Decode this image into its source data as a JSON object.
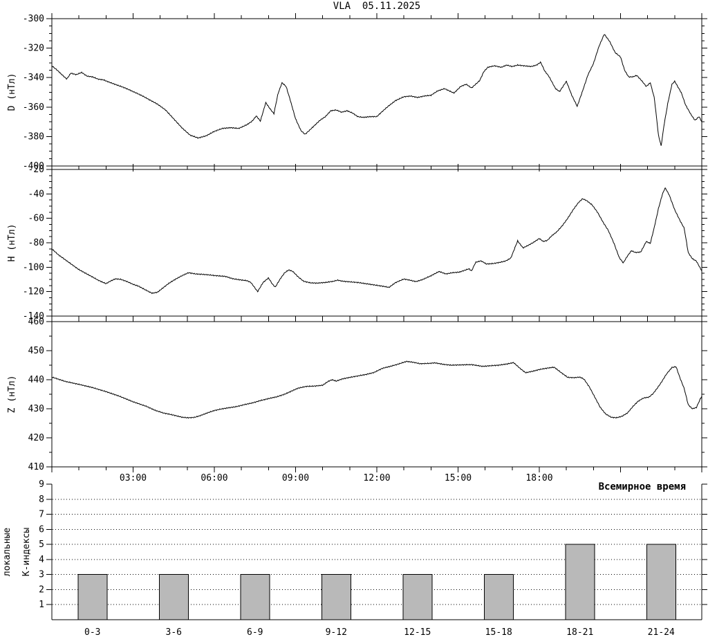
{
  "title": "VLA  05.11.2025",
  "x_axis": {
    "label": "Всемирное время",
    "range_hours": [
      0,
      24
    ],
    "ticks": [
      {
        "hours": 3,
        "label": "03:00"
      },
      {
        "hours": 6,
        "label": "06:00"
      },
      {
        "hours": 9,
        "label": "09:00"
      },
      {
        "hours": 12,
        "label": "12:00"
      },
      {
        "hours": 15,
        "label": "15:00"
      },
      {
        "hours": 18,
        "label": "18:00"
      }
    ]
  },
  "colors": {
    "line": "#000000",
    "bar_fill": "#b9b9b9",
    "background": "#ffffff",
    "text": "#000000"
  },
  "chart_data": [
    {
      "type": "line",
      "name": "D",
      "ylabel": "D (нТл)",
      "ylim": [
        -400,
        -300
      ],
      "yticks": [
        -300,
        -320,
        -340,
        -360,
        -380,
        -400
      ],
      "ytick_minor": 5,
      "points": [
        [
          0,
          -332
        ],
        [
          0.2,
          -335
        ],
        [
          0.4,
          -338.5
        ],
        [
          0.55,
          -341
        ],
        [
          0.7,
          -337
        ],
        [
          0.9,
          -338
        ],
        [
          1.1,
          -336.5
        ],
        [
          1.3,
          -339
        ],
        [
          1.5,
          -339.5
        ],
        [
          1.7,
          -341
        ],
        [
          1.9,
          -341.5
        ],
        [
          2.1,
          -343
        ],
        [
          2.4,
          -345
        ],
        [
          2.7,
          -347
        ],
        [
          3,
          -349.5
        ],
        [
          3.3,
          -352
        ],
        [
          3.6,
          -355
        ],
        [
          3.9,
          -358
        ],
        [
          4.2,
          -362
        ],
        [
          4.5,
          -368
        ],
        [
          4.8,
          -374
        ],
        [
          5.1,
          -379
        ],
        [
          5.4,
          -381
        ],
        [
          5.7,
          -379.5
        ],
        [
          6,
          -376.5
        ],
        [
          6.3,
          -374.5
        ],
        [
          6.6,
          -374
        ],
        [
          6.9,
          -374.5
        ],
        [
          7.2,
          -372
        ],
        [
          7.4,
          -369.5
        ],
        [
          7.55,
          -366
        ],
        [
          7.7,
          -369.5
        ],
        [
          7.9,
          -357
        ],
        [
          8.05,
          -361
        ],
        [
          8.2,
          -364.5
        ],
        [
          8.35,
          -351
        ],
        [
          8.5,
          -343.5
        ],
        [
          8.65,
          -346
        ],
        [
          8.8,
          -355
        ],
        [
          9,
          -368
        ],
        [
          9.2,
          -376
        ],
        [
          9.35,
          -378.5
        ],
        [
          9.5,
          -376
        ],
        [
          9.7,
          -372.5
        ],
        [
          9.9,
          -369
        ],
        [
          10.1,
          -366.5
        ],
        [
          10.3,
          -362.5
        ],
        [
          10.5,
          -362
        ],
        [
          10.7,
          -363.5
        ],
        [
          10.9,
          -362.5
        ],
        [
          11.1,
          -364
        ],
        [
          11.3,
          -366.5
        ],
        [
          11.5,
          -367
        ],
        [
          11.75,
          -366.5
        ],
        [
          12,
          -366.5
        ],
        [
          12.2,
          -363
        ],
        [
          12.45,
          -359
        ],
        [
          12.7,
          -355.5
        ],
        [
          13,
          -353
        ],
        [
          13.25,
          -352.5
        ],
        [
          13.5,
          -353.5
        ],
        [
          13.75,
          -352.5
        ],
        [
          14,
          -352
        ],
        [
          14.25,
          -349
        ],
        [
          14.5,
          -347.5
        ],
        [
          14.85,
          -350.5
        ],
        [
          15.1,
          -346
        ],
        [
          15.3,
          -344.5
        ],
        [
          15.5,
          -347
        ],
        [
          15.8,
          -342
        ],
        [
          15.95,
          -336
        ],
        [
          16.1,
          -333
        ],
        [
          16.35,
          -332
        ],
        [
          16.6,
          -333
        ],
        [
          16.8,
          -331.5
        ],
        [
          17,
          -332.5
        ],
        [
          17.2,
          -331.5
        ],
        [
          17.45,
          -332
        ],
        [
          17.7,
          -332.5
        ],
        [
          17.9,
          -331.5
        ],
        [
          18.05,
          -329.5
        ],
        [
          18.2,
          -335.5
        ],
        [
          18.35,
          -339
        ],
        [
          18.6,
          -347.5
        ],
        [
          18.75,
          -349.5
        ],
        [
          19,
          -342.5
        ],
        [
          19.2,
          -352
        ],
        [
          19.4,
          -359.5
        ],
        [
          19.6,
          -349
        ],
        [
          19.8,
          -338
        ],
        [
          20,
          -330.5
        ],
        [
          20.2,
          -319
        ],
        [
          20.4,
          -310.5
        ],
        [
          20.6,
          -315.5
        ],
        [
          20.8,
          -323
        ],
        [
          21,
          -326
        ],
        [
          21.15,
          -335
        ],
        [
          21.3,
          -339.5
        ],
        [
          21.45,
          -339.5
        ],
        [
          21.6,
          -338.5
        ],
        [
          21.8,
          -342.5
        ],
        [
          21.95,
          -346
        ],
        [
          22.1,
          -343.5
        ],
        [
          22.25,
          -354
        ],
        [
          22.4,
          -379
        ],
        [
          22.5,
          -386.5
        ],
        [
          22.6,
          -373
        ],
        [
          22.75,
          -357
        ],
        [
          22.9,
          -344.5
        ],
        [
          23,
          -342.5
        ],
        [
          23.25,
          -350.5
        ],
        [
          23.4,
          -358.5
        ],
        [
          23.6,
          -365
        ],
        [
          23.75,
          -369
        ],
        [
          23.9,
          -366.5
        ],
        [
          24,
          -370
        ]
      ]
    },
    {
      "type": "line",
      "name": "H",
      "ylabel": "H (нТл)",
      "ylim": [
        -140,
        -20
      ],
      "yticks": [
        -20,
        -40,
        -60,
        -80,
        -100,
        -120,
        -140
      ],
      "ytick_minor": 5,
      "points": [
        [
          0,
          -85
        ],
        [
          0.25,
          -90
        ],
        [
          0.5,
          -94
        ],
        [
          0.75,
          -98
        ],
        [
          1,
          -102
        ],
        [
          1.25,
          -105
        ],
        [
          1.5,
          -108
        ],
        [
          1.7,
          -110.5
        ],
        [
          1.85,
          -112
        ],
        [
          2,
          -113.5
        ],
        [
          2.15,
          -111.5
        ],
        [
          2.35,
          -109.5
        ],
        [
          2.55,
          -110
        ],
        [
          2.75,
          -111.5
        ],
        [
          3,
          -114
        ],
        [
          3.2,
          -115.5
        ],
        [
          3.45,
          -118.5
        ],
        [
          3.7,
          -121.3
        ],
        [
          3.9,
          -120.5
        ],
        [
          4.1,
          -117
        ],
        [
          4.3,
          -113.5
        ],
        [
          4.55,
          -110
        ],
        [
          4.8,
          -107
        ],
        [
          5.05,
          -104.5
        ],
        [
          5.3,
          -105.5
        ],
        [
          5.55,
          -105.8
        ],
        [
          5.8,
          -106.3
        ],
        [
          6.1,
          -107
        ],
        [
          6.4,
          -107.5
        ],
        [
          6.7,
          -109.5
        ],
        [
          7,
          -110.5
        ],
        [
          7.2,
          -111
        ],
        [
          7.35,
          -112.5
        ],
        [
          7.6,
          -120
        ],
        [
          7.8,
          -112.5
        ],
        [
          8,
          -108.8
        ],
        [
          8.15,
          -114
        ],
        [
          8.25,
          -116.3
        ],
        [
          8.45,
          -109
        ],
        [
          8.6,
          -104.5
        ],
        [
          8.75,
          -102.2
        ],
        [
          8.9,
          -103.5
        ],
        [
          9.1,
          -108
        ],
        [
          9.3,
          -111.5
        ],
        [
          9.55,
          -112.8
        ],
        [
          9.8,
          -113
        ],
        [
          10.1,
          -112.5
        ],
        [
          10.4,
          -111.5
        ],
        [
          10.55,
          -110.6
        ],
        [
          10.75,
          -111.5
        ],
        [
          11,
          -112
        ],
        [
          11.3,
          -112.5
        ],
        [
          11.6,
          -113.5
        ],
        [
          11.9,
          -114.5
        ],
        [
          12.2,
          -115.5
        ],
        [
          12.45,
          -116.5
        ],
        [
          12.7,
          -112.5
        ],
        [
          13,
          -109.7
        ],
        [
          13.2,
          -110.5
        ],
        [
          13.45,
          -111.8
        ],
        [
          13.7,
          -110
        ],
        [
          14,
          -107
        ],
        [
          14.3,
          -103.5
        ],
        [
          14.55,
          -105.5
        ],
        [
          14.8,
          -104.5
        ],
        [
          15.05,
          -104
        ],
        [
          15.25,
          -102.5
        ],
        [
          15.4,
          -101.3
        ],
        [
          15.5,
          -103
        ],
        [
          15.65,
          -96
        ],
        [
          15.85,
          -94.8
        ],
        [
          16.05,
          -97.4
        ],
        [
          16.3,
          -97
        ],
        [
          16.55,
          -96
        ],
        [
          16.75,
          -95
        ],
        [
          16.95,
          -92.5
        ],
        [
          17.1,
          -84
        ],
        [
          17.2,
          -78.5
        ],
        [
          17.4,
          -84.2
        ],
        [
          17.6,
          -82
        ],
        [
          17.8,
          -79.5
        ],
        [
          18,
          -76.5
        ],
        [
          18.15,
          -79
        ],
        [
          18.3,
          -78
        ],
        [
          18.45,
          -74.5
        ],
        [
          18.65,
          -71
        ],
        [
          18.85,
          -66
        ],
        [
          19.05,
          -60
        ],
        [
          19.25,
          -53
        ],
        [
          19.45,
          -47
        ],
        [
          19.6,
          -44
        ],
        [
          19.75,
          -45.5
        ],
        [
          19.95,
          -49
        ],
        [
          20.15,
          -55
        ],
        [
          20.35,
          -63
        ],
        [
          20.55,
          -70
        ],
        [
          20.75,
          -80
        ],
        [
          20.95,
          -92
        ],
        [
          21.1,
          -96.5
        ],
        [
          21.25,
          -91
        ],
        [
          21.4,
          -86.5
        ],
        [
          21.55,
          -88
        ],
        [
          21.75,
          -87.5
        ],
        [
          21.95,
          -79
        ],
        [
          22.1,
          -80.5
        ],
        [
          22.25,
          -67
        ],
        [
          22.4,
          -52
        ],
        [
          22.55,
          -40
        ],
        [
          22.65,
          -35
        ],
        [
          22.8,
          -41
        ],
        [
          23,
          -53
        ],
        [
          23.2,
          -62
        ],
        [
          23.35,
          -68
        ],
        [
          23.5,
          -88
        ],
        [
          23.65,
          -93
        ],
        [
          23.8,
          -95
        ],
        [
          23.9,
          -99
        ],
        [
          24,
          -103
        ]
      ]
    },
    {
      "type": "line",
      "name": "Z",
      "ylabel": "Z (нТл)",
      "ylim": [
        410,
        460
      ],
      "yticks": [
        460,
        450,
        440,
        430,
        420,
        410
      ],
      "ytick_minor": 5,
      "points": [
        [
          0,
          440.9
        ],
        [
          0.5,
          439.4
        ],
        [
          1,
          438.4
        ],
        [
          1.5,
          437.3
        ],
        [
          2,
          435.9
        ],
        [
          2.5,
          434.3
        ],
        [
          3,
          432.4
        ],
        [
          3.5,
          430.8
        ],
        [
          3.8,
          429.5
        ],
        [
          4.1,
          428.6
        ],
        [
          4.5,
          427.8
        ],
        [
          4.8,
          427.1
        ],
        [
          5,
          426.9
        ],
        [
          5.25,
          427
        ],
        [
          5.5,
          427.7
        ],
        [
          5.75,
          428.6
        ],
        [
          6,
          429.4
        ],
        [
          6.25,
          429.9
        ],
        [
          6.5,
          430.3
        ],
        [
          6.8,
          430.7
        ],
        [
          7.1,
          431.4
        ],
        [
          7.4,
          432
        ],
        [
          7.7,
          432.8
        ],
        [
          8,
          433.5
        ],
        [
          8.3,
          434.1
        ],
        [
          8.6,
          435
        ],
        [
          8.9,
          436.3
        ],
        [
          9.1,
          437.1
        ],
        [
          9.4,
          437.7
        ],
        [
          9.7,
          437.8
        ],
        [
          10,
          438.1
        ],
        [
          10.2,
          439.4
        ],
        [
          10.35,
          440
        ],
        [
          10.5,
          439.5
        ],
        [
          10.7,
          440.2
        ],
        [
          11,
          440.8
        ],
        [
          11.3,
          441.3
        ],
        [
          11.6,
          441.8
        ],
        [
          11.9,
          442.5
        ],
        [
          12.2,
          443.9
        ],
        [
          12.5,
          444.6
        ],
        [
          12.8,
          445.4
        ],
        [
          13.1,
          446.3
        ],
        [
          13.35,
          446
        ],
        [
          13.6,
          445.5
        ],
        [
          13.9,
          445.6
        ],
        [
          14.15,
          445.8
        ],
        [
          14.45,
          445.3
        ],
        [
          14.75,
          445
        ],
        [
          15.1,
          445.1
        ],
        [
          15.5,
          445.2
        ],
        [
          15.9,
          444.6
        ],
        [
          16.2,
          444.8
        ],
        [
          16.5,
          445
        ],
        [
          16.8,
          445.4
        ],
        [
          17.05,
          445.9
        ],
        [
          17.3,
          443.8
        ],
        [
          17.5,
          442.4
        ],
        [
          17.75,
          442.9
        ],
        [
          18,
          443.5
        ],
        [
          18.3,
          444
        ],
        [
          18.55,
          444.3
        ],
        [
          18.8,
          442.5
        ],
        [
          19.05,
          440.8
        ],
        [
          19.3,
          440.7
        ],
        [
          19.5,
          440.9
        ],
        [
          19.65,
          440.2
        ],
        [
          19.85,
          437.5
        ],
        [
          20.05,
          434
        ],
        [
          20.25,
          430.5
        ],
        [
          20.45,
          428.2
        ],
        [
          20.65,
          427.1
        ],
        [
          20.85,
          426.9
        ],
        [
          21.05,
          427.4
        ],
        [
          21.25,
          428.5
        ],
        [
          21.45,
          430.7
        ],
        [
          21.65,
          432.6
        ],
        [
          21.85,
          433.7
        ],
        [
          22.05,
          434
        ],
        [
          22.2,
          435.2
        ],
        [
          22.35,
          437
        ],
        [
          22.5,
          439
        ],
        [
          22.7,
          442
        ],
        [
          22.9,
          444.2
        ],
        [
          23.05,
          444.5
        ],
        [
          23.2,
          440.5
        ],
        [
          23.35,
          437
        ],
        [
          23.5,
          431.4
        ],
        [
          23.65,
          430
        ],
        [
          23.8,
          430.4
        ],
        [
          23.95,
          433.5
        ],
        [
          24,
          434.3
        ]
      ]
    },
    {
      "type": "bar",
      "name": "K",
      "ylabel_lines": [
        "локальные",
        "К-индексы"
      ],
      "ylim": [
        0,
        9
      ],
      "yticks": [
        1,
        2,
        3,
        4,
        5,
        6,
        7,
        8,
        9
      ],
      "grid_levels": [
        1,
        2,
        3,
        4,
        5,
        6,
        7,
        8
      ],
      "categories": [
        "0-3",
        "3-6",
        "6-9",
        "9-12",
        "12-15",
        "15-18",
        "18-21",
        "21-24"
      ],
      "values": [
        3,
        3,
        3,
        3,
        3,
        3,
        5,
        5
      ]
    }
  ]
}
